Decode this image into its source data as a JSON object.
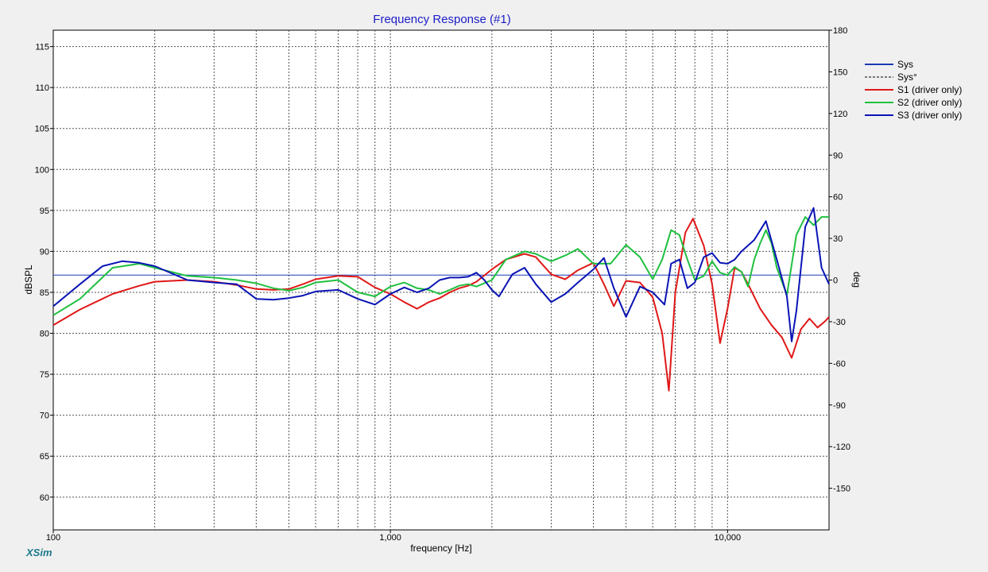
{
  "app": {
    "brand": "XSim"
  },
  "chart_data": {
    "type": "line",
    "title": "Frequency Response (#1)",
    "xlabel": "frequency [Hz]",
    "ylabel": "dBSPL",
    "y2label": "deg",
    "xscale": "log",
    "xlim": [
      100,
      20000
    ],
    "ylim": [
      56,
      117
    ],
    "y2lim": [
      -180,
      180
    ],
    "x_ticks": [
      100,
      1000,
      10000
    ],
    "x_tick_labels": [
      "100",
      "1,000",
      "10,000"
    ],
    "y_ticks": [
      60,
      65,
      70,
      75,
      80,
      85,
      90,
      95,
      100,
      105,
      110,
      115
    ],
    "y2_ticks": [
      180,
      150,
      120,
      90,
      60,
      30,
      0,
      -30,
      -60,
      -90,
      -120,
      -150
    ],
    "grid": true,
    "legend_position": "right",
    "series": [
      {
        "name": "Sys",
        "color": "#1c3cb4",
        "style": "solid",
        "x": [
          100,
          20000
        ],
        "y": [
          87.1,
          87.1
        ]
      },
      {
        "name": "Sys°",
        "color": "#000000",
        "style": "dashed",
        "x": [],
        "y": []
      },
      {
        "name": "S1 (driver only)",
        "color": "#e01818",
        "style": "solid",
        "x": [
          100,
          120,
          150,
          180,
          200,
          250,
          300,
          350,
          400,
          450,
          500,
          550,
          600,
          700,
          800,
          900,
          1000,
          1100,
          1200,
          1300,
          1400,
          1500,
          1600,
          1700,
          1800,
          2000,
          2200,
          2500,
          2700,
          3000,
          3300,
          3600,
          4000,
          4300,
          4600,
          5000,
          5500,
          6000,
          6400,
          6700,
          7000,
          7500,
          7900,
          8500,
          9000,
          9500,
          10000,
          10500,
          11000,
          11500,
          12500,
          13500,
          14500,
          15500,
          16500,
          17500,
          18500,
          19500,
          20000
        ],
        "y": [
          81,
          82.9,
          84.8,
          85.8,
          86.3,
          86.5,
          86.3,
          85.9,
          85.4,
          85.3,
          85.4,
          86,
          86.6,
          87,
          86.9,
          85.6,
          84.8,
          83.8,
          83,
          83.8,
          84.3,
          85,
          85.5,
          85.8,
          86.3,
          87.8,
          89,
          89.7,
          89.3,
          87.2,
          86.6,
          87.7,
          88.6,
          86,
          83.3,
          86.4,
          86.2,
          84.4,
          80,
          73,
          85,
          92.3,
          94,
          90.7,
          86,
          78.8,
          83,
          88,
          87.5,
          86,
          83,
          81,
          79.5,
          77,
          80.5,
          81.8,
          80.7,
          81.5,
          82
        ]
      },
      {
        "name": "S2 (driver only)",
        "color": "#20c040",
        "style": "solid",
        "x": [
          100,
          120,
          150,
          180,
          200,
          250,
          300,
          350,
          400,
          450,
          500,
          550,
          600,
          700,
          800,
          900,
          1000,
          1100,
          1200,
          1300,
          1400,
          1500,
          1600,
          1700,
          1800,
          2000,
          2200,
          2500,
          2700,
          3000,
          3300,
          3600,
          4000,
          4500,
          5000,
          5500,
          6000,
          6400,
          6800,
          7200,
          7600,
          8000,
          8500,
          9000,
          9500,
          10000,
          10500,
          11000,
          11500,
          12000,
          12500,
          13000,
          13500,
          14000,
          15000,
          16000,
          17000,
          18000,
          19000,
          20000
        ],
        "y": [
          82.2,
          84.2,
          88,
          88.5,
          88,
          87,
          86.8,
          86.5,
          86.1,
          85.5,
          85.2,
          85.6,
          86.2,
          86.5,
          85,
          84.5,
          85.7,
          86.2,
          85.5,
          85.3,
          84.8,
          85.3,
          85.8,
          86,
          85.7,
          86.5,
          89,
          90,
          89.7,
          88.8,
          89.5,
          90.3,
          88.5,
          88.5,
          90.8,
          89.3,
          86.6,
          89,
          92.6,
          92,
          89,
          86.5,
          87,
          88.8,
          87.4,
          87.1,
          88.1,
          87.5,
          85.7,
          89,
          91,
          92.6,
          91,
          88,
          84.7,
          92,
          94.2,
          93.2,
          94.2,
          94.2
        ]
      },
      {
        "name": "S3 (driver only)",
        "color": "#0a14b4",
        "style": "solid",
        "x": [
          100,
          120,
          140,
          160,
          180,
          200,
          250,
          300,
          350,
          400,
          450,
          500,
          550,
          600,
          700,
          800,
          900,
          1000,
          1100,
          1200,
          1300,
          1400,
          1500,
          1600,
          1700,
          1800,
          1900,
          2000,
          2100,
          2300,
          2500,
          2700,
          3000,
          3300,
          3600,
          4000,
          4300,
          4600,
          5000,
          5500,
          6000,
          6500,
          6800,
          7200,
          7600,
          8000,
          8500,
          9000,
          9500,
          10000,
          10500,
          11000,
          12000,
          13000,
          14000,
          15000,
          15500,
          16000,
          17000,
          18000,
          19000,
          20000
        ],
        "y": [
          83.3,
          86,
          88.2,
          88.8,
          88.6,
          88.2,
          86.5,
          86.2,
          86,
          84.2,
          84.1,
          84.3,
          84.6,
          85.1,
          85.3,
          84.2,
          83.5,
          84.8,
          85.6,
          85,
          85.5,
          86.5,
          86.8,
          86.8,
          86.9,
          87.4,
          86.5,
          85.3,
          84.5,
          87.2,
          88,
          86,
          83.8,
          84.8,
          86.2,
          87.8,
          89.2,
          85.5,
          82,
          85.7,
          85,
          83.5,
          88.5,
          89,
          85.5,
          86.2,
          89.3,
          89.8,
          88.6,
          88.5,
          89,
          90,
          91.4,
          93.7,
          89,
          84.5,
          79,
          82.7,
          93,
          95.3,
          88,
          86
        ]
      }
    ]
  }
}
